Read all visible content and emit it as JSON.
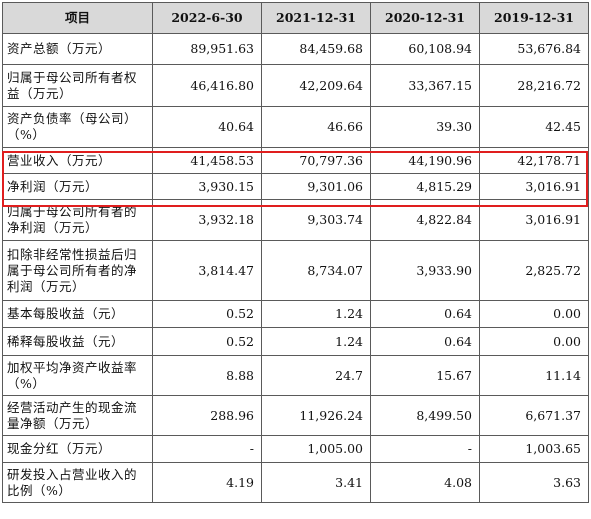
{
  "table": {
    "headers": [
      "项目",
      "2022-6-30",
      "2021-12-31",
      "2020-12-31",
      "2019-12-31"
    ],
    "rows": [
      {
        "label": "资产总额（万元）",
        "values": [
          "89,951.63",
          "84,459.68",
          "60,108.94",
          "53,676.84"
        ]
      },
      {
        "label": "归属于母公司所有者权益（万元）",
        "values": [
          "46,416.80",
          "42,209.64",
          "33,367.15",
          "28,216.72"
        ]
      },
      {
        "label": "资产负债率（母公司）（%）",
        "values": [
          "40.64",
          "46.66",
          "39.30",
          "42.45"
        ]
      },
      {
        "label": "营业收入（万元）",
        "values": [
          "41,458.53",
          "70,797.36",
          "44,190.96",
          "42,178.71"
        ]
      },
      {
        "label": "净利润（万元）",
        "values": [
          "3,930.15",
          "9,301.06",
          "4,815.29",
          "3,016.91"
        ]
      },
      {
        "label": "归属于母公司所有者的净利润（万元）",
        "values": [
          "3,932.18",
          "9,303.74",
          "4,822.84",
          "3,016.91"
        ]
      },
      {
        "label": "扣除非经常性损益后归属于母公司所有者的净利润（万元）",
        "values": [
          "3,814.47",
          "8,734.07",
          "3,933.90",
          "2,825.72"
        ]
      },
      {
        "label": "基本每股收益（元）",
        "values": [
          "0.52",
          "1.24",
          "0.64",
          "0.00"
        ]
      },
      {
        "label": "稀释每股收益（元）",
        "values": [
          "0.52",
          "1.24",
          "0.64",
          "0.00"
        ]
      },
      {
        "label": "加权平均净资产收益率（%）",
        "values": [
          "8.88",
          "24.7",
          "15.67",
          "11.14"
        ]
      },
      {
        "label": "经营活动产生的现金流量净额（万元）",
        "values": [
          "288.96",
          "11,926.24",
          "8,499.50",
          "6,671.37"
        ]
      },
      {
        "label": "现金分红（万元）",
        "values": [
          "-",
          "1,005.00",
          "-",
          "1,003.65"
        ]
      },
      {
        "label": "研发投入占营业收入的比例（%）",
        "values": [
          "4.19",
          "3.41",
          "4.08",
          "3.63"
        ]
      }
    ]
  },
  "colors": {
    "header_bg": "#d9d9d9",
    "highlight_border": "#e01e1e"
  }
}
